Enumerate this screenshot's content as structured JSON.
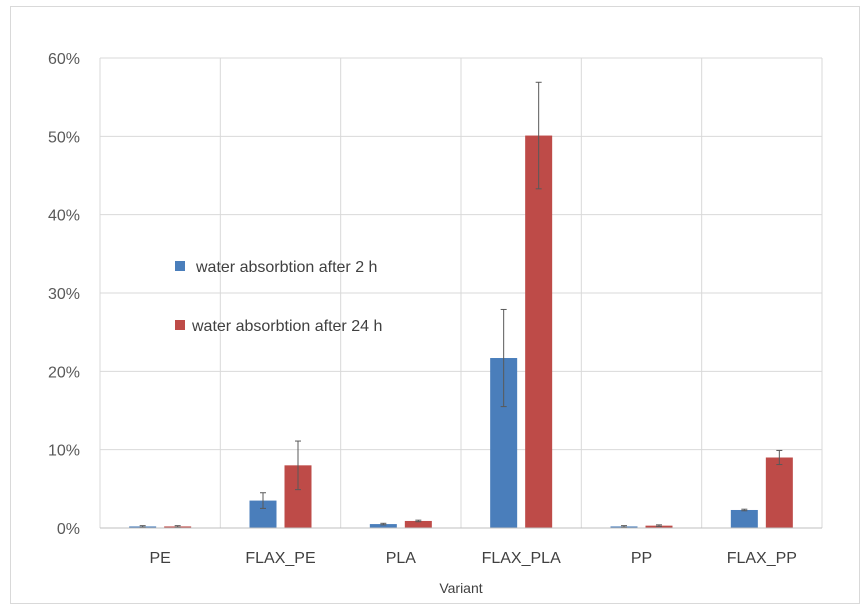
{
  "chart_data": {
    "type": "bar",
    "title": "",
    "xlabel": "Variant",
    "ylabel": "",
    "ylim": [
      0,
      0.6
    ],
    "yticks": [
      0,
      0.1,
      0.2,
      0.3,
      0.4,
      0.5,
      0.6
    ],
    "ytick_labels": [
      "0%",
      "10%",
      "20%",
      "30%",
      "40%",
      "50%",
      "60%"
    ],
    "grid": "vertical-and-horizontal",
    "legend_position": "left-middle",
    "categories": [
      "PE",
      "FLAX_PE",
      "PLA",
      "FLAX_PLA",
      "PP",
      "FLAX_PP"
    ],
    "series": [
      {
        "name": "water absorbtion after 2 h",
        "color": "#4a7ebb",
        "values": [
          0.002,
          0.035,
          0.005,
          0.217,
          0.002,
          0.023
        ],
        "errors": [
          0.001,
          0.01,
          0.001,
          0.062,
          0.001,
          0.001
        ]
      },
      {
        "name": "water absorbtion after 24 h",
        "color": "#be4b48",
        "values": [
          0.002,
          0.08,
          0.009,
          0.501,
          0.003,
          0.09
        ],
        "errors": [
          0.001,
          0.031,
          0.001,
          0.068,
          0.001,
          0.009
        ]
      }
    ]
  }
}
